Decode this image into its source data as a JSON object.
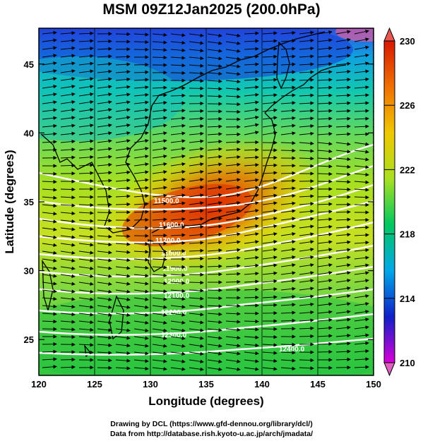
{
  "title": "MSM 09Z12Jan2025 (200.0hPa)",
  "x_axis": {
    "label": "Longitude (degrees)",
    "ticks": [
      "120",
      "125",
      "130",
      "135",
      "140",
      "145",
      "150"
    ],
    "range": [
      120,
      150
    ]
  },
  "y_axis": {
    "label": "Latitude  (degrees)",
    "ticks": [
      "25",
      "30",
      "35",
      "40",
      "45"
    ],
    "range": [
      22.4,
      47.6
    ]
  },
  "colorbar": {
    "ticks": [
      "230",
      "226",
      "222",
      "218",
      "214",
      "210"
    ],
    "range": [
      210,
      230
    ],
    "colors": [
      "#d800d8",
      "#1020c8",
      "#00a8e8",
      "#00c860",
      "#a8e020",
      "#f0c800",
      "#f07000",
      "#d81800"
    ]
  },
  "contours": {
    "labels": [
      "11500.0",
      "11600.0",
      "11700.0",
      "11800.0",
      "11900.0",
      "12000.0",
      "12100.0",
      "12200.0",
      "12300.0",
      "12400.0"
    ],
    "color": "#ffffff"
  },
  "credits": {
    "line1": "Drawing by DCL (https://www.gfd-dennou.org/library/dcl/)",
    "line2": "Data from http://database.rish.kyoto-u.ac.jp/arch/jmadata/"
  }
}
